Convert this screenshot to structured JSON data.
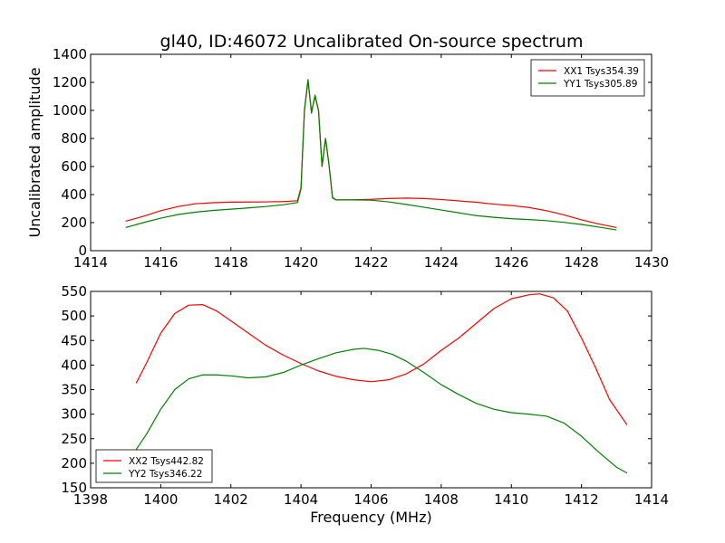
{
  "title": "gl40, ID:46072 Uncalibrated On-source spectrum",
  "chart_data": [
    {
      "type": "line",
      "title": "gl40, ID:46072 Uncalibrated On-source spectrum",
      "xlabel": "",
      "ylabel": "Uncalibrated amplitude",
      "xlim": [
        1414,
        1430
      ],
      "ylim": [
        0,
        1400
      ],
      "xticks": [
        1414,
        1416,
        1418,
        1420,
        1422,
        1424,
        1426,
        1428,
        1430
      ],
      "yticks": [
        0,
        200,
        400,
        600,
        800,
        1000,
        1200,
        1400
      ],
      "legend_position": "top-right",
      "grid": false,
      "series": [
        {
          "name": "XX1 Tsys354.39",
          "color": "#ff0000",
          "x": [
            1415,
            1415.5,
            1416,
            1416.5,
            1417,
            1417.5,
            1418,
            1418.5,
            1419,
            1419.5,
            1419.9,
            1420.0,
            1420.1,
            1420.2,
            1420.3,
            1420.4,
            1420.5,
            1420.6,
            1420.7,
            1420.8,
            1420.9,
            1421.0,
            1421.5,
            1422,
            1422.5,
            1423,
            1423.5,
            1424,
            1424.5,
            1425,
            1425.5,
            1426,
            1426.5,
            1427,
            1427.5,
            1428,
            1428.5,
            1429
          ],
          "y": [
            210,
            245,
            285,
            315,
            335,
            342,
            346,
            347,
            348,
            350,
            356,
            450,
            1000,
            1210,
            990,
            1100,
            1000,
            600,
            800,
            610,
            380,
            362,
            363,
            366,
            372,
            375,
            372,
            365,
            355,
            345,
            332,
            322,
            308,
            285,
            255,
            220,
            190,
            165
          ]
        },
        {
          "name": "YY1 Tsys305.89",
          "color": "#008000",
          "x": [
            1415,
            1415.5,
            1416,
            1416.5,
            1417,
            1417.5,
            1418,
            1418.5,
            1419,
            1419.5,
            1419.9,
            1420.0,
            1420.1,
            1420.2,
            1420.3,
            1420.4,
            1420.5,
            1420.6,
            1420.7,
            1420.8,
            1420.9,
            1421.0,
            1421.5,
            1422,
            1422.5,
            1423,
            1423.5,
            1424,
            1424.5,
            1425,
            1425.5,
            1426,
            1426.5,
            1427,
            1427.5,
            1428,
            1428.5,
            1429
          ],
          "y": [
            165,
            200,
            232,
            258,
            275,
            287,
            296,
            305,
            315,
            328,
            343,
            440,
            1010,
            1220,
            980,
            1110,
            1000,
            600,
            800,
            610,
            375,
            362,
            362,
            360,
            348,
            330,
            310,
            290,
            270,
            250,
            238,
            228,
            222,
            214,
            202,
            187,
            168,
            148
          ]
        }
      ]
    },
    {
      "type": "line",
      "title": "",
      "xlabel": "Frequency (MHz)",
      "ylabel": "",
      "xlim": [
        1398,
        1414
      ],
      "ylim": [
        150,
        550
      ],
      "xticks": [
        1398,
        1400,
        1402,
        1404,
        1406,
        1408,
        1410,
        1412,
        1414
      ],
      "yticks": [
        150,
        200,
        250,
        300,
        350,
        400,
        450,
        500,
        550
      ],
      "legend_position": "bottom-left",
      "grid": false,
      "series": [
        {
          "name": "XX2 Tsys442.82",
          "color": "#ff0000",
          "x": [
            1399.3,
            1399.6,
            1400,
            1400.4,
            1400.8,
            1401.2,
            1401.6,
            1402,
            1402.5,
            1403,
            1403.5,
            1404,
            1404.5,
            1405,
            1405.5,
            1406,
            1406.5,
            1407,
            1407.5,
            1408,
            1408.5,
            1409,
            1409.5,
            1410,
            1410.5,
            1410.8,
            1411.2,
            1411.6,
            1412,
            1412.4,
            1412.8,
            1413.3
          ],
          "y": [
            363,
            405,
            465,
            505,
            522,
            523,
            510,
            490,
            465,
            440,
            420,
            403,
            388,
            377,
            370,
            366,
            370,
            382,
            402,
            430,
            455,
            485,
            515,
            535,
            543,
            545,
            537,
            510,
            455,
            395,
            330,
            278
          ]
        },
        {
          "name": "YY2 Tsys346.22",
          "color": "#008000",
          "x": [
            1399.3,
            1399.6,
            1400,
            1400.4,
            1400.8,
            1401.2,
            1401.6,
            1402,
            1402.5,
            1403,
            1403.5,
            1404,
            1404.5,
            1405,
            1405.5,
            1405.8,
            1406.2,
            1406.6,
            1407,
            1407.5,
            1408,
            1408.5,
            1409,
            1409.5,
            1410,
            1410.5,
            1411,
            1411.5,
            1412,
            1412.5,
            1413,
            1413.3
          ],
          "y": [
            228,
            260,
            310,
            350,
            372,
            380,
            380,
            378,
            374,
            376,
            385,
            400,
            413,
            425,
            432,
            434,
            430,
            422,
            408,
            385,
            360,
            340,
            322,
            310,
            303,
            300,
            296,
            282,
            255,
            222,
            192,
            180
          ]
        }
      ]
    }
  ]
}
